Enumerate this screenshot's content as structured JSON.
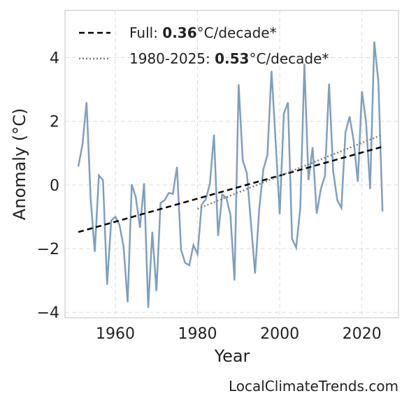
{
  "chart_data": {
    "type": "line",
    "xlabel": "Year",
    "ylabel": "Anomaly (°C)",
    "footer": "LocalClimateTrends.com",
    "xlim": [
      1947.76,
      2028.9
    ],
    "ylim": [
      -4.17,
      5.48
    ],
    "xticks": [
      1960,
      1980,
      2000,
      2020
    ],
    "yticks": [
      {
        "value": -4,
        "label": "−4"
      },
      {
        "value": -2,
        "label": "−2"
      },
      0,
      2,
      4
    ],
    "grid": true,
    "legend": "upper left",
    "series": [
      {
        "color": "#7f9fbf",
        "style": "solid",
        "x": [
          1951,
          1952,
          1953,
          1954,
          1955,
          1956,
          1957,
          1958,
          1959,
          1960,
          1961,
          1962,
          1963,
          1964,
          1965,
          1966,
          1967,
          1968,
          1969,
          1970,
          1971,
          1972,
          1973,
          1974,
          1975,
          1976,
          1977,
          1978,
          1979,
          1980,
          1981,
          1982,
          1983,
          1984,
          1985,
          1986,
          1987,
          1988,
          1989,
          1990,
          1991,
          1992,
          1993,
          1994,
          1995,
          1996,
          1997,
          1998,
          1999,
          2000,
          2001,
          2002,
          2003,
          2004,
          2005,
          2006,
          2007,
          2008,
          2009,
          2010,
          2011,
          2012,
          2013,
          2014,
          2015,
          2016,
          2017,
          2018,
          2019,
          2020,
          2021,
          2022,
          2023,
          2024,
          2025
        ],
        "values": [
          0.58,
          1.27,
          2.6,
          -0.45,
          -2.1,
          0.3,
          0.15,
          -3.13,
          -1.12,
          -1.0,
          -1.25,
          -1.93,
          -3.68,
          0.02,
          -0.4,
          -1.34,
          0.05,
          -3.86,
          -1.47,
          -3.33,
          -0.57,
          -0.48,
          -0.25,
          -0.28,
          0.57,
          -2.04,
          -2.45,
          -2.52,
          -1.89,
          -2.17,
          -0.62,
          -0.46,
          0.04,
          1.58,
          -1.6,
          -0.3,
          -0.4,
          -0.94,
          -3.0,
          3.16,
          0.77,
          0.37,
          -1.2,
          -2.78,
          -0.77,
          0.48,
          0.94,
          3.58,
          1.36,
          -0.92,
          2.24,
          2.59,
          -1.69,
          -1.97,
          -0.72,
          3.8,
          0.15,
          1.18,
          -0.9,
          -0.13,
          0.29,
          3.18,
          0.44,
          -0.48,
          -0.72,
          1.65,
          2.15,
          1.38,
          0.1,
          2.94,
          1.98,
          -0.13,
          4.5,
          3.25,
          -0.83
        ]
      },
      {
        "name": [
          {
            "text": "Full: "
          },
          {
            "text": "0.36",
            "bold": true
          },
          {
            "text": "°C/decade*"
          }
        ],
        "color": "#000000",
        "style": "dashed",
        "x": [
          1951,
          2025
        ],
        "values": [
          -1.48,
          1.2
        ]
      },
      {
        "name": [
          {
            "text": "1980-2025: "
          },
          {
            "text": "0.53",
            "bold": true
          },
          {
            "text": "°C/decade*"
          }
        ],
        "color": "#808080",
        "style": "dotted",
        "x": [
          1980,
          2025
        ],
        "values": [
          -0.75,
          1.58
        ]
      }
    ]
  }
}
